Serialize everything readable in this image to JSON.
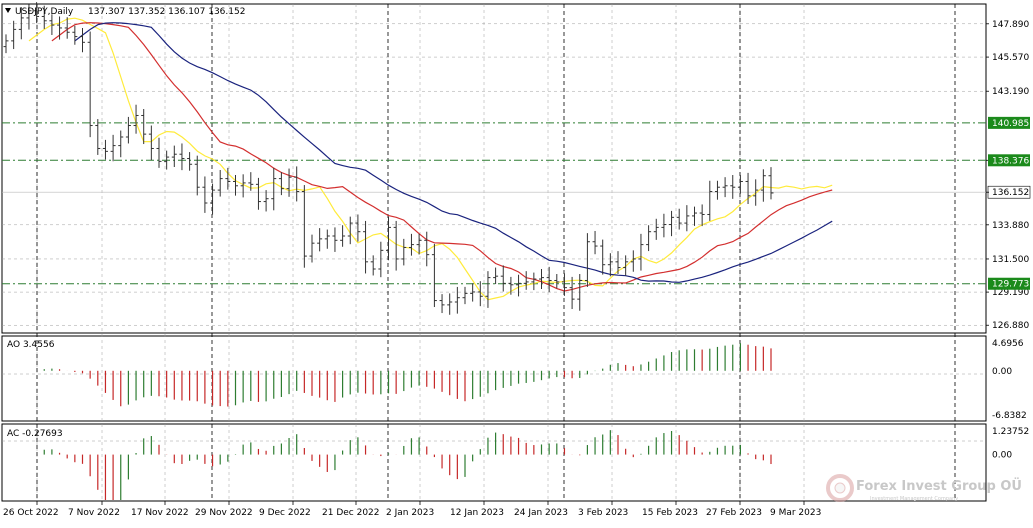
{
  "header": {
    "symbol_label": "USDJPY,Daily",
    "ohlc": "137.307 137.352 136.107 136.152"
  },
  "colors": {
    "bull_bar": "#333333",
    "ma_fast": "#ffeb3b",
    "ma_mid": "#d32f2f",
    "ma_slow": "#1a237e",
    "level_line": "#2e7d32",
    "level_tag": "#1b8a1b",
    "price_tag": "#ffffff",
    "ao_up": "#2e7d32",
    "ao_down": "#c62828",
    "grid": "#9e9e9e"
  },
  "price_axis": {
    "ticks": [
      "147.890",
      "145.570",
      "143.190",
      "138.376",
      "136.152",
      "133.880",
      "131.500",
      "129.190",
      "126.880"
    ],
    "level_tags": [
      "140.985",
      "138.376",
      "129.773"
    ],
    "current_tag": "136.152"
  },
  "indicators": {
    "ao": {
      "label": "AO 3.4556",
      "ticks": [
        "4.6956",
        "0.00",
        "-6.8382"
      ]
    },
    "ac": {
      "label": "AC -0.27693",
      "ticks": [
        "1.23752",
        "0.00"
      ]
    }
  },
  "time_axis": {
    "labels": [
      "26 Oct 2022",
      "7 Nov 2022",
      "17 Nov 2022",
      "29 Nov 2022",
      "9 Dec 2022",
      "21 Dec 2022",
      "2 Jan 2023",
      "12 Jan 2023",
      "24 Jan 2023",
      "3 Feb 2023",
      "15 Feb 2023",
      "27 Feb 2023",
      "9 Mar 2023"
    ]
  },
  "watermark": {
    "name": "Forex Invest Group OÜ",
    "tagline": "Investment Management Company"
  },
  "chart_data": {
    "type": "candlestick",
    "symbol": "USDJPY",
    "timeframe": "Daily",
    "ylim": [
      126.2,
      149.2
    ],
    "horizontal_levels": [
      140.985,
      138.376,
      129.773
    ],
    "current_price": 136.152,
    "closes": [
      146.7,
      147.5,
      148.3,
      148.8,
      148.4,
      148.1,
      147.8,
      147.6,
      147.3,
      147.0,
      146.6,
      140.8,
      139.2,
      139.0,
      139.4,
      140.0,
      140.8,
      141.5,
      140.2,
      139.2,
      138.3,
      138.6,
      138.8,
      138.5,
      138.1,
      136.5,
      135.4,
      136.3,
      137.1,
      136.9,
      136.6,
      136.8,
      136.7,
      135.5,
      135.7,
      137.1,
      136.4,
      137.2,
      136.2,
      131.7,
      132.6,
      132.9,
      133.1,
      132.8,
      133.1,
      134.0,
      133.4,
      131.3,
      130.8,
      132.1,
      133.7,
      131.5,
      132.3,
      132.5,
      132.8,
      131.8,
      128.6,
      128.3,
      128.5,
      128.8,
      129.1,
      129.2,
      128.9,
      130.2,
      130.3,
      129.8,
      129.7,
      129.8,
      129.9,
      130.1,
      130.2,
      130.0,
      129.9,
      129.5,
      128.7,
      130.0,
      132.7,
      132.4,
      131.1,
      131.3,
      130.9,
      131.3,
      131.5,
      132.5,
      133.4,
      133.7,
      133.9,
      134.4,
      134.0,
      134.5,
      134.7,
      134.6,
      136.2,
      136.5,
      136.6,
      136.5,
      136.9,
      135.9,
      136.3,
      137.3,
      136.1
    ],
    "indicators": [
      {
        "name": "AO",
        "value": 3.4556,
        "ylim": [
          -6.8382,
          4.6956
        ]
      },
      {
        "name": "AC",
        "value": -0.27693,
        "ylim": [
          -1.9,
          1.23752
        ]
      }
    ]
  }
}
